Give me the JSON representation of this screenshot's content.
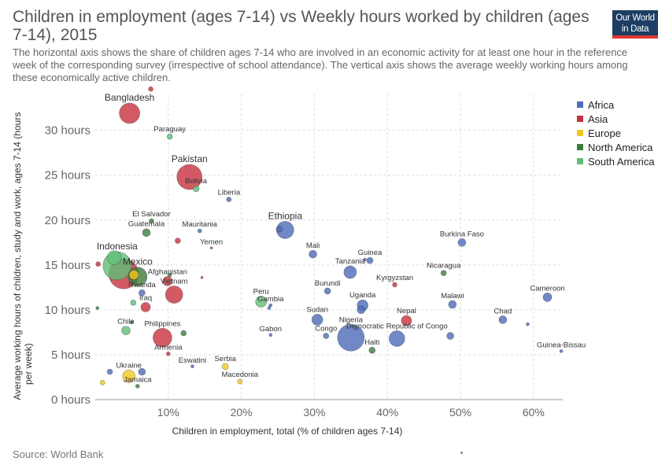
{
  "header": {
    "title": "Children in employment (ages 7-14) vs Weekly hours worked by children (ages 7-14), 2015",
    "subtitle": "The horizontal axis shows the share of children ages 7-14 who are involved in an economic activity for at least one hour in the reference week of the corresponding survey (irrespective of school attendance). The vertical axis shows the average weekly working hours among these economically active children.",
    "logo_line1": "Our World",
    "logo_line2": "in Data",
    "logo_bg": "#1d3d63",
    "logo_accent": "#dc3a2d"
  },
  "footer": {
    "source": "Source: World Bank"
  },
  "chart_data": {
    "type": "scatter",
    "title": "Children in employment (ages 7-14) vs Weekly hours worked by children (ages 7-14), 2015",
    "xlabel": "Children in employment, total (% of children ages 7-14)",
    "ylabel": "Average working hours of children, study and work, ages 7-14 (hours per week)",
    "xlim": [
      0,
      64
    ],
    "ylim": [
      0,
      34
    ],
    "x_ticks": [
      10,
      20,
      30,
      40,
      50,
      60
    ],
    "x_tick_labels": [
      "10%",
      "20%",
      "30%",
      "40%",
      "50%",
      "60%"
    ],
    "y_ticks": [
      0,
      5,
      10,
      15,
      20,
      25,
      30
    ],
    "y_tick_labels": [
      "0 hours",
      "5 hours",
      "10 hours",
      "15 hours",
      "20 hours",
      "25 hours",
      "30 hours"
    ],
    "grid": true,
    "legend_position": "right",
    "series": [
      {
        "name": "Africa",
        "color": "#4c6cb8"
      },
      {
        "name": "Asia",
        "color": "#c8313f"
      },
      {
        "name": "Europe",
        "color": "#f3c81e"
      },
      {
        "name": "North America",
        "color": "#3a7d3c"
      },
      {
        "name": "South America",
        "color": "#5fbe78"
      }
    ],
    "points": [
      {
        "label": "Bangladesh",
        "region": "Asia",
        "x": 4.7,
        "y": 31.9,
        "size": 13,
        "label_big": true
      },
      {
        "label": "",
        "region": "Asia",
        "x": 7.6,
        "y": 34.6,
        "size": 3
      },
      {
        "label": "Paraguay",
        "region": "South America",
        "x": 10.2,
        "y": 29.3,
        "size": 3.5
      },
      {
        "label": "Pakistan",
        "region": "Asia",
        "x": 12.9,
        "y": 24.8,
        "size": 16,
        "label_big": true
      },
      {
        "label": "Bolivia",
        "region": "South America",
        "x": 13.8,
        "y": 23.5,
        "size": 4
      },
      {
        "label": "Liberia",
        "region": "Africa",
        "x": 18.3,
        "y": 22.3,
        "size": 3
      },
      {
        "label": "El Salvador",
        "region": "North America",
        "x": 7.7,
        "y": 19.9,
        "size": 3
      },
      {
        "label": "Guatemala",
        "region": "North America",
        "x": 7.0,
        "y": 18.6,
        "size": 5
      },
      {
        "label": "Mauritania",
        "region": "Africa",
        "x": 14.3,
        "y": 18.8,
        "size": 2.5
      },
      {
        "label": "",
        "region": "Asia",
        "x": 11.3,
        "y": 17.7,
        "size": 3.5
      },
      {
        "label": "Yemen",
        "region": "Asia",
        "x": 15.9,
        "y": 16.9,
        "size": 1.5
      },
      {
        "label": "Ethiopia",
        "region": "Africa",
        "x": 26.0,
        "y": 18.9,
        "size": 11,
        "label_big": true
      },
      {
        "label": "",
        "region": "Africa",
        "x": 25.2,
        "y": 19.0,
        "size": 4
      },
      {
        "label": "Mali",
        "region": "Africa",
        "x": 29.8,
        "y": 16.2,
        "size": 5
      },
      {
        "label": "Guinea",
        "region": "Africa",
        "x": 37.6,
        "y": 15.5,
        "size": 4
      },
      {
        "label": "",
        "region": "Africa",
        "x": 36.9,
        "y": 15.6,
        "size": 2
      },
      {
        "label": "Burkina Faso",
        "region": "Africa",
        "x": 50.2,
        "y": 17.5,
        "size": 5
      },
      {
        "label": "Indonesia",
        "region": "South America",
        "x": 3.0,
        "y": 14.9,
        "size": 18,
        "label_big": true
      },
      {
        "label": "",
        "region": "South America",
        "x": 2.6,
        "y": 15.8,
        "size": 9
      },
      {
        "label": "",
        "region": "Asia",
        "x": 3.9,
        "y": 14.0,
        "size": 19
      },
      {
        "label": "",
        "region": "Asia",
        "x": 0.4,
        "y": 15.1,
        "size": 3
      },
      {
        "label": "Mexico",
        "region": "North America",
        "x": 5.8,
        "y": 13.7,
        "size": 12,
        "label_big": true
      },
      {
        "label": "",
        "region": "Europe",
        "x": 5.3,
        "y": 13.9,
        "size": 6
      },
      {
        "label": "Afghanistan",
        "region": "Asia",
        "x": 9.9,
        "y": 13.2,
        "size": 6
      },
      {
        "label": "",
        "region": "North America",
        "x": 10.2,
        "y": 13.9,
        "size": 2.5
      },
      {
        "label": "",
        "region": "Asia",
        "x": 14.6,
        "y": 13.6,
        "size": 1.5
      },
      {
        "label": "Vietnam",
        "region": "Asia",
        "x": 10.8,
        "y": 11.7,
        "size": 11
      },
      {
        "label": "Rwanda",
        "region": "Africa",
        "x": 6.4,
        "y": 11.9,
        "size": 4
      },
      {
        "label": "Iraq",
        "region": "Asia",
        "x": 6.9,
        "y": 10.3,
        "size": 6
      },
      {
        "label": "",
        "region": "South America",
        "x": 5.2,
        "y": 10.8,
        "size": 3.5
      },
      {
        "label": "",
        "region": "North America",
        "x": 0.3,
        "y": 10.2,
        "size": 2
      },
      {
        "label": "Tanzania",
        "region": "Africa",
        "x": 34.9,
        "y": 14.2,
        "size": 8
      },
      {
        "label": "Kyrgyzstan",
        "region": "Asia",
        "x": 41.0,
        "y": 12.8,
        "size": 3
      },
      {
        "label": "Nicaragua",
        "region": "North America",
        "x": 47.7,
        "y": 14.1,
        "size": 3.5
      },
      {
        "label": "Burundi",
        "region": "Africa",
        "x": 31.8,
        "y": 12.1,
        "size": 4
      },
      {
        "label": "Uganda",
        "region": "Africa",
        "x": 36.6,
        "y": 10.5,
        "size": 7
      },
      {
        "label": "",
        "region": "Africa",
        "x": 36.4,
        "y": 10.0,
        "size": 5
      },
      {
        "label": "Malawi",
        "region": "Africa",
        "x": 48.9,
        "y": 10.6,
        "size": 5
      },
      {
        "label": "Cameroon",
        "region": "Africa",
        "x": 61.9,
        "y": 11.4,
        "size": 5.5
      },
      {
        "label": "Peru",
        "region": "South America",
        "x": 22.7,
        "y": 10.9,
        "size": 7
      },
      {
        "label": "Gambia",
        "region": "Africa",
        "x": 24.0,
        "y": 10.5,
        "size": 2
      },
      {
        "label": "",
        "region": "Africa",
        "x": 23.8,
        "y": 10.2,
        "size": 2
      },
      {
        "label": "Sudan",
        "region": "Africa",
        "x": 30.4,
        "y": 8.9,
        "size": 7
      },
      {
        "label": "Nepal",
        "region": "Asia",
        "x": 42.6,
        "y": 8.8,
        "size": 6.5
      },
      {
        "label": "Chad",
        "region": "Africa",
        "x": 55.8,
        "y": 8.9,
        "size": 5
      },
      {
        "label": "",
        "region": "Africa",
        "x": 59.2,
        "y": 8.4,
        "size": 2
      },
      {
        "label": "Chile",
        "region": "South America",
        "x": 4.2,
        "y": 7.7,
        "size": 5.5
      },
      {
        "label": "",
        "region": "North America",
        "x": 5.0,
        "y": 8.6,
        "size": 2
      },
      {
        "label": "Philippines",
        "region": "Asia",
        "x": 9.2,
        "y": 6.9,
        "size": 12
      },
      {
        "label": "",
        "region": "North America",
        "x": 12.1,
        "y": 7.4,
        "size": 3.5
      },
      {
        "label": "Gabon",
        "region": "Africa",
        "x": 24.0,
        "y": 7.2,
        "size": 2
      },
      {
        "label": "Congo",
        "region": "Africa",
        "x": 31.6,
        "y": 7.1,
        "size": 3.5
      },
      {
        "label": "Nigeria",
        "region": "Africa",
        "x": 35.0,
        "y": 6.9,
        "size": 17
      },
      {
        "label": "",
        "region": "Africa",
        "x": 35.7,
        "y": 7.9,
        "size": 2
      },
      {
        "label": "Democratic Republic of Congo",
        "region": "Africa",
        "x": 41.3,
        "y": 6.8,
        "size": 10
      },
      {
        "label": "",
        "region": "Africa",
        "x": 48.6,
        "y": 7.1,
        "size": 4.5
      },
      {
        "label": "Haiti",
        "region": "North America",
        "x": 37.9,
        "y": 5.5,
        "size": 4
      },
      {
        "label": "Guinea-Bissau",
        "region": "Africa",
        "x": 63.8,
        "y": 5.4,
        "size": 2
      },
      {
        "label": "Armenia",
        "region": "Asia",
        "x": 10.0,
        "y": 5.1,
        "size": 2.5
      },
      {
        "label": "Eswatini",
        "region": "Africa",
        "x": 13.3,
        "y": 3.7,
        "size": 2
      },
      {
        "label": "Serbia",
        "region": "Europe",
        "x": 17.8,
        "y": 3.7,
        "size": 4
      },
      {
        "label": "Ukraine",
        "region": "Europe",
        "x": 4.6,
        "y": 2.6,
        "size": 8
      },
      {
        "label": "",
        "region": "Africa",
        "x": 2.0,
        "y": 3.1,
        "size": 3.5
      },
      {
        "label": "",
        "region": "Africa",
        "x": 6.4,
        "y": 3.1,
        "size": 4.5
      },
      {
        "label": "Macedonia",
        "region": "Europe",
        "x": 19.8,
        "y": 2.0,
        "size": 3
      },
      {
        "label": "Jamaica",
        "region": "North America",
        "x": 5.8,
        "y": 1.5,
        "size": 2.5
      },
      {
        "label": "",
        "region": "Europe",
        "x": 1.0,
        "y": 1.9,
        "size": 3
      }
    ]
  }
}
